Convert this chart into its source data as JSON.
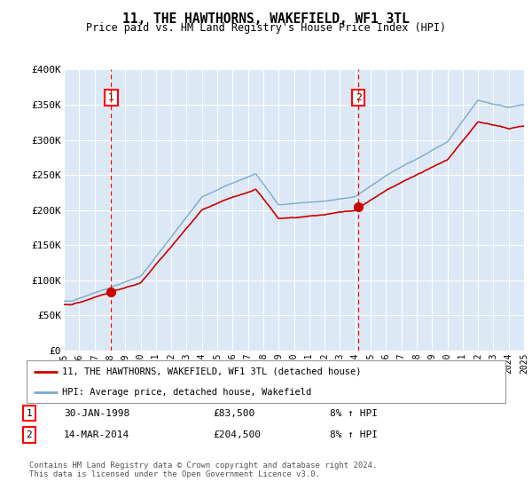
{
  "title": "11, THE HAWTHORNS, WAKEFIELD, WF1 3TL",
  "subtitle": "Price paid vs. HM Land Registry's House Price Index (HPI)",
  "bg_color": "#ffffff",
  "plot_bg_color": "#dce8f5",
  "grid_color": "#ffffff",
  "red_line_color": "#cc0000",
  "blue_line_color": "#7aaacc",
  "transaction1_value": 83500,
  "transaction1_date_str": "30-JAN-1998",
  "transaction1_year": 1998.08,
  "transaction1_pct": "8% ↑ HPI",
  "transaction2_value": 204500,
  "transaction2_date_str": "14-MAR-2014",
  "transaction2_year": 2014.2,
  "transaction2_pct": "8% ↑ HPI",
  "legend_line1": "11, THE HAWTHORNS, WAKEFIELD, WF1 3TL (detached house)",
  "legend_line2": "HPI: Average price, detached house, Wakefield",
  "footer": "Contains HM Land Registry data © Crown copyright and database right 2024.\nThis data is licensed under the Open Government Licence v3.0.",
  "ylabel_ticks": [
    "£0",
    "£50K",
    "£100K",
    "£150K",
    "£200K",
    "£250K",
    "£300K",
    "£350K",
    "£400K"
  ],
  "ylabel_values": [
    0,
    50000,
    100000,
    150000,
    200000,
    250000,
    300000,
    350000,
    400000
  ],
  "xmin": 1995,
  "xmax": 2025,
  "ymin": 0,
  "ymax": 400000
}
